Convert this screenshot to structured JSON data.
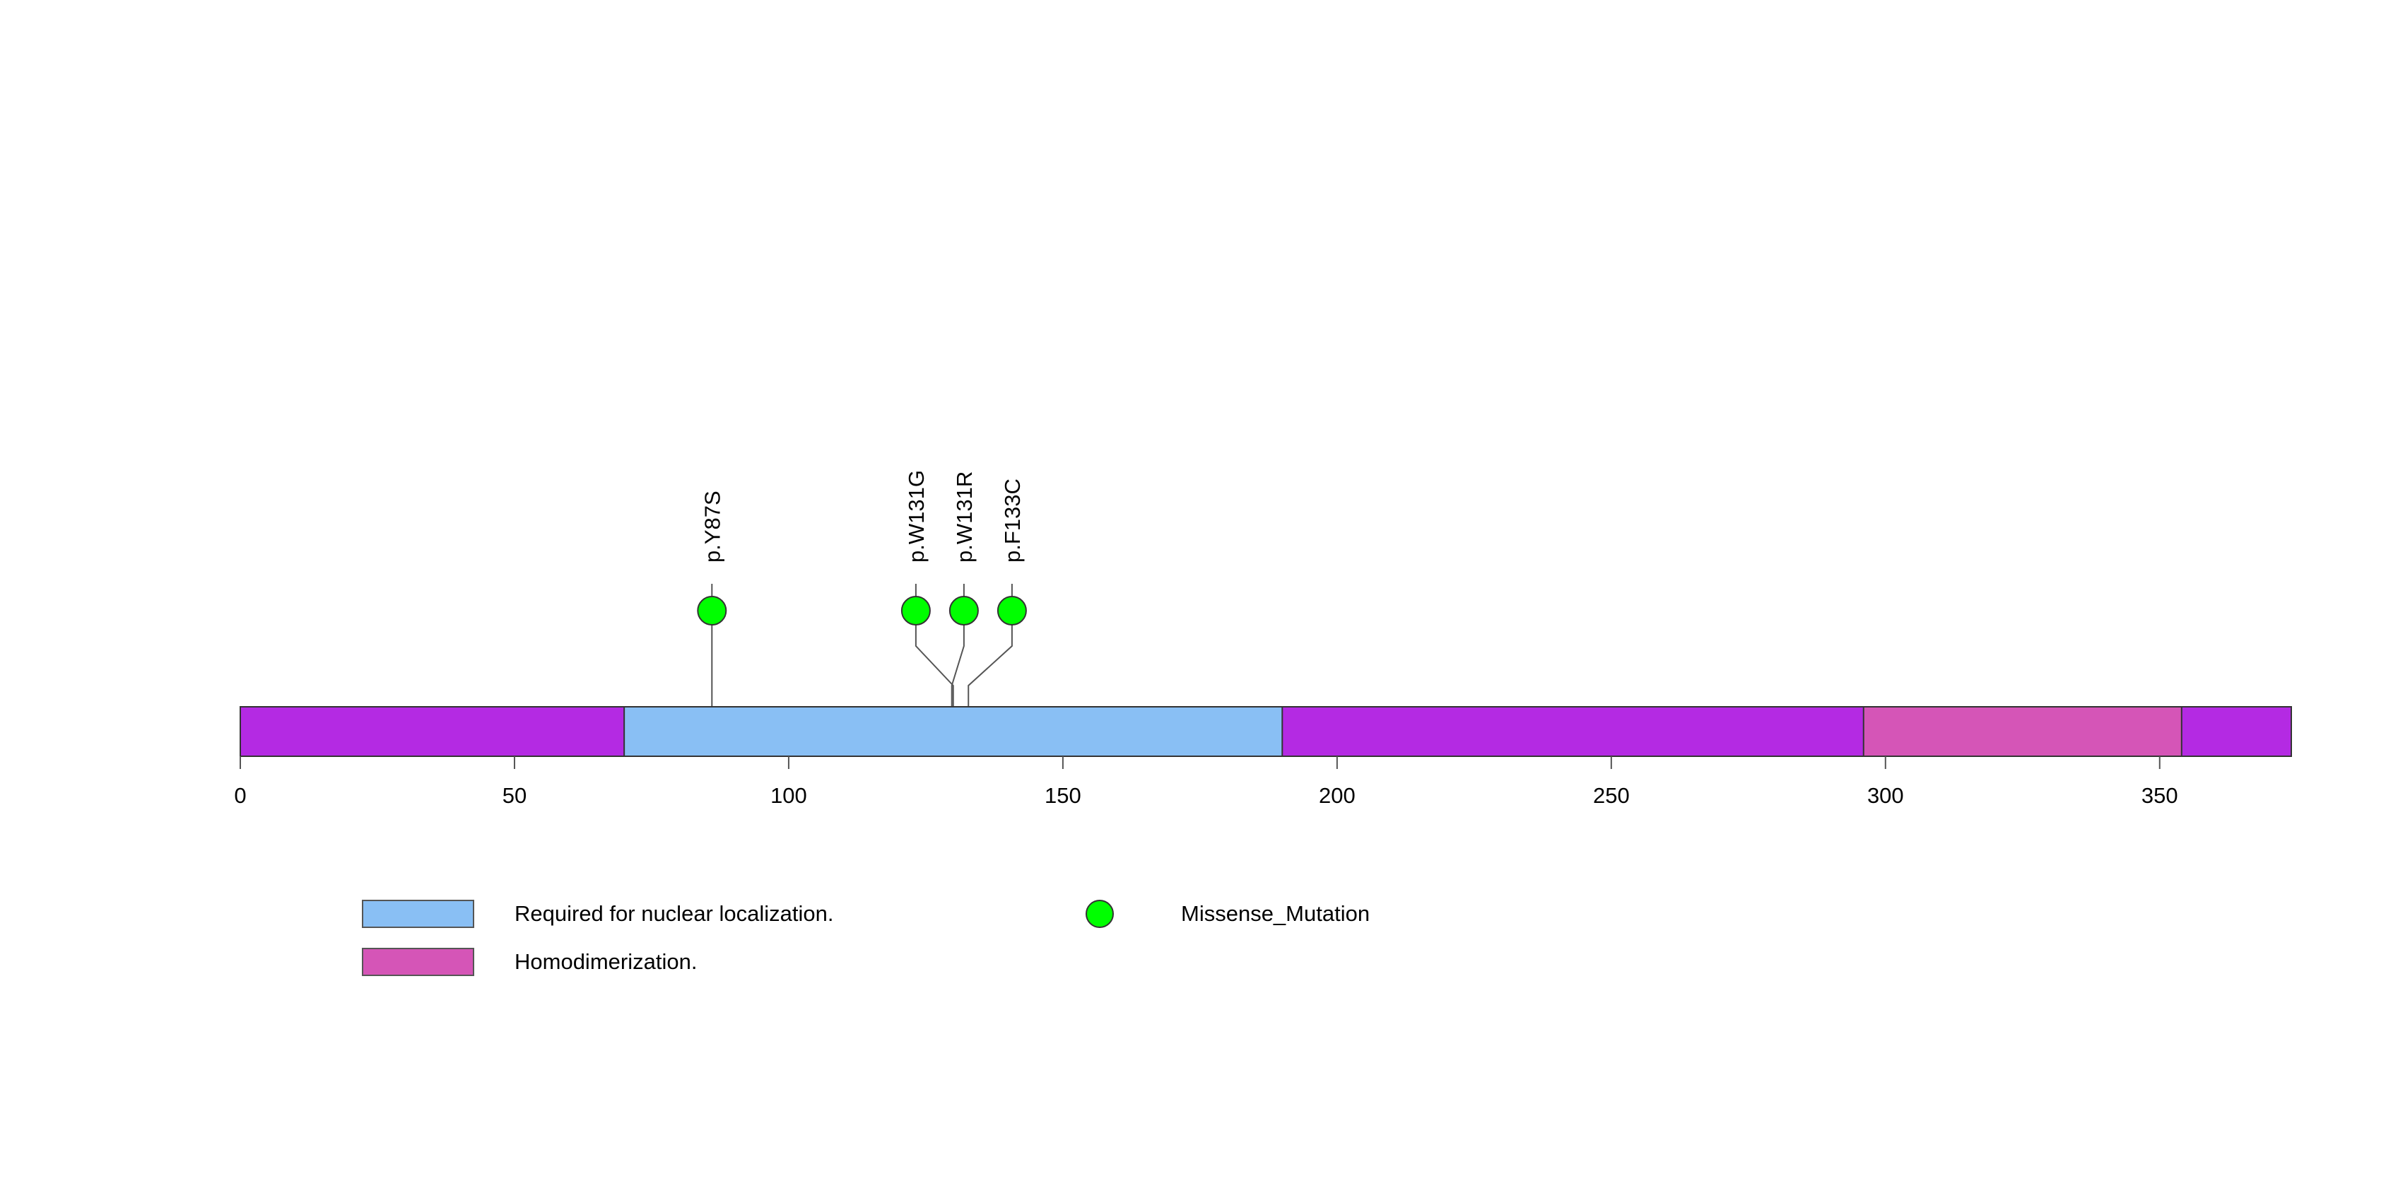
{
  "protein": {
    "length": 374,
    "backbone_color": "#B42AE3"
  },
  "axis": {
    "ticks": [
      0,
      50,
      100,
      150,
      200,
      250,
      300,
      350
    ]
  },
  "domains": [
    {
      "start": 70,
      "end": 190,
      "color": "#89BFF4",
      "label": "Required for nuclear localization."
    },
    {
      "start": 296,
      "end": 354,
      "color": "#D555B7",
      "label": "Homodimerization."
    }
  ],
  "mutations": [
    {
      "label": "p.Y87S",
      "position": 86,
      "type": "Missense_Mutation"
    },
    {
      "label": "p.W131G",
      "position": 130,
      "type": "Missense_Mutation"
    },
    {
      "label": "p.W131R",
      "position": 130,
      "type": "Missense_Mutation"
    },
    {
      "label": "p.F133C",
      "position": 132,
      "type": "Missense_Mutation"
    }
  ],
  "legend": {
    "domain_labels": [
      "Required for nuclear localization.",
      "Homodimerization."
    ],
    "mutation_label": "Missense_Mutation",
    "mutation_color": "#00FF00"
  }
}
